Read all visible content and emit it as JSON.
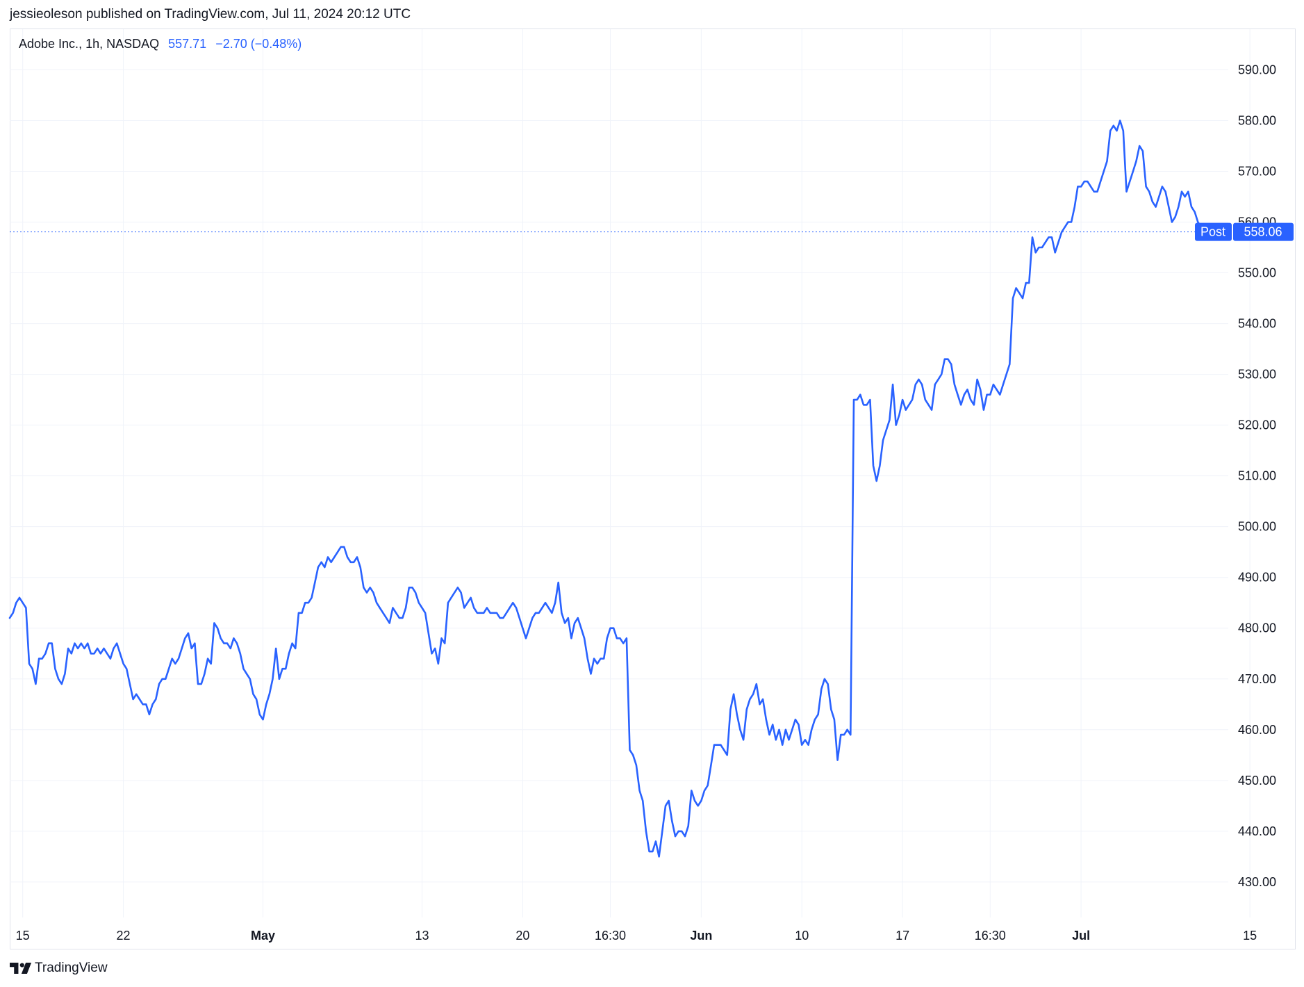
{
  "header": {
    "publisher": "jessieoleson published on TradingView.com, Jul 11, 2024 20:12 UTC"
  },
  "legend": {
    "symbol": "Adobe Inc., 1h, NASDAQ",
    "price": "557.71",
    "change": "−2.70 (−0.48%)"
  },
  "footer": {
    "brand": "TradingView"
  },
  "colors": {
    "line": "#2962ff",
    "grid": "#f0f3fa",
    "text": "#131722",
    "border": "#e0e3eb"
  },
  "chart_data": {
    "type": "line",
    "title": "",
    "xlabel": "",
    "ylabel": "",
    "ylim": [
      423,
      598
    ],
    "grid": true,
    "y_ticks": [
      "590.00",
      "580.00",
      "570.00",
      "560.00",
      "550.00",
      "540.00",
      "530.00",
      "520.00",
      "510.00",
      "500.00",
      "490.00",
      "480.00",
      "470.00",
      "460.00",
      "450.00",
      "440.00",
      "430.00"
    ],
    "x_ticks": [
      {
        "label": "15",
        "index": 4,
        "bold": false
      },
      {
        "label": "22",
        "index": 35,
        "bold": false
      },
      {
        "label": "May",
        "index": 78,
        "bold": true
      },
      {
        "label": "13",
        "index": 127,
        "bold": false
      },
      {
        "label": "20",
        "index": 158,
        "bold": false
      },
      {
        "label": "16:30",
        "index": 185,
        "bold": false
      },
      {
        "label": "Jun",
        "index": 213,
        "bold": true
      },
      {
        "label": "10",
        "index": 244,
        "bold": false
      },
      {
        "label": "17",
        "index": 275,
        "bold": false
      },
      {
        "label": "16:30",
        "index": 302,
        "bold": false
      },
      {
        "label": "Jul",
        "index": 330,
        "bold": true
      },
      {
        "label": "15",
        "index": 382,
        "bold": false
      }
    ],
    "last_price_label": {
      "tag": "Post",
      "value": "558.06",
      "price": 558.06
    },
    "series": [
      {
        "values": [
          482,
          483,
          485,
          486,
          485,
          484,
          473,
          472,
          469,
          474,
          474,
          475,
          477,
          477,
          472,
          470,
          469,
          471,
          476,
          475,
          477,
          476,
          477,
          476,
          477,
          475,
          475,
          476,
          475,
          476,
          475,
          474,
          476,
          477,
          475,
          473,
          472,
          469,
          466,
          467,
          466,
          465,
          465,
          463,
          465,
          466,
          469,
          470,
          470,
          472,
          474,
          473,
          474,
          476,
          478,
          479,
          476,
          477,
          469,
          469,
          471,
          474,
          473,
          481,
          480,
          478,
          477,
          477,
          476,
          478,
          477,
          475,
          472,
          471,
          470,
          467,
          466,
          463,
          462,
          465,
          467,
          470,
          476,
          470,
          472,
          472,
          475,
          477,
          476,
          483,
          483,
          485,
          485,
          486,
          489,
          492,
          493,
          492,
          494,
          493,
          494,
          495,
          496,
          496,
          494,
          493,
          493,
          494,
          492,
          488,
          487,
          488,
          487,
          485,
          484,
          483,
          482,
          481,
          484,
          483,
          482,
          482,
          484,
          488,
          488,
          487,
          485,
          484,
          483,
          479,
          475,
          476,
          473,
          478,
          477,
          485,
          486,
          487,
          488,
          487,
          484,
          485,
          486,
          484,
          483,
          483,
          483,
          484,
          483,
          483,
          483,
          482,
          482,
          483,
          484,
          485,
          484,
          482,
          480,
          478,
          480,
          482,
          483,
          483,
          484,
          485,
          484,
          483,
          485,
          489,
          483,
          481,
          482,
          478,
          481,
          482,
          480,
          478,
          474,
          471,
          474,
          473,
          474,
          474,
          478,
          480,
          480,
          478,
          478,
          477,
          478,
          456,
          455,
          453,
          448,
          446,
          440,
          436,
          436,
          438,
          435,
          440,
          445,
          446,
          442,
          439,
          440,
          440,
          439,
          441,
          448,
          446,
          445,
          446,
          448,
          449,
          453,
          457,
          457,
          457,
          456,
          455,
          464,
          467,
          463,
          460,
          458,
          464,
          466,
          467,
          469,
          465,
          466,
          462,
          459,
          461,
          458,
          460,
          457,
          460,
          458,
          460,
          462,
          461,
          457,
          458,
          457,
          460,
          462,
          463,
          468,
          470,
          469,
          464,
          462,
          454,
          459,
          459,
          460,
          459,
          525,
          525,
          526,
          524,
          524,
          525,
          512,
          509,
          512,
          517,
          519,
          521,
          528,
          520,
          522,
          525,
          523,
          524,
          525,
          528,
          529,
          528,
          525,
          524,
          523,
          528,
          529,
          530,
          533,
          533,
          532,
          528,
          526,
          524,
          526,
          527,
          525,
          524,
          529,
          527,
          523,
          526,
          526,
          528,
          527,
          526,
          528,
          530,
          532,
          545,
          547,
          546,
          545,
          548,
          548,
          557,
          554,
          555,
          555,
          556,
          557,
          557,
          554,
          556,
          558,
          559,
          560,
          560,
          563,
          567,
          567,
          568,
          568,
          567,
          566,
          566,
          568,
          570,
          572,
          578,
          579,
          578,
          580,
          578,
          566,
          568,
          570,
          572,
          575,
          574,
          567,
          566,
          564,
          563,
          565,
          567,
          566,
          563,
          560,
          561,
          563,
          566,
          565,
          566,
          563,
          562,
          560,
          559
        ]
      }
    ]
  }
}
